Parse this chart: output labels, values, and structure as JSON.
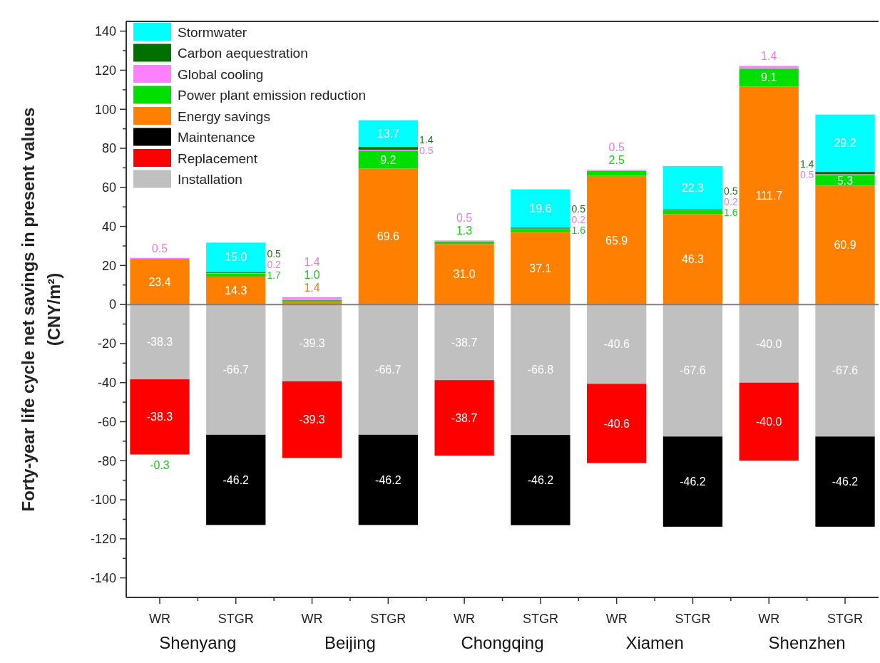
{
  "chart_data": {
    "type": "bar",
    "stacked": true,
    "ylabel": "Forty-year life cycle net savings in present values\n(CNY/m²)",
    "categories": [
      "WR",
      "STGR",
      "WR",
      "STGR",
      "WR",
      "STGR",
      "WR",
      "STGR",
      "WR",
      "STGR"
    ],
    "annotations": [
      "Shenyang",
      "Beijing",
      "Chongqing",
      "Xiamen",
      "Shenzhen"
    ],
    "series": [
      {
        "name": "Installation",
        "color": "#c0c0c0",
        "values": [
          -38.3,
          -66.7,
          -39.3,
          -66.7,
          -38.7,
          -66.8,
          -40.6,
          -67.6,
          -40.0,
          -67.6
        ],
        "value_labels": [
          "-38.3",
          "-66.7",
          "-39.3",
          "-66.7",
          "-38.7",
          "-66.8",
          "-40.6",
          "-67.6",
          "-40.0",
          "-67.6"
        ]
      },
      {
        "name": "Replacement",
        "color": "#ff0000",
        "values": [
          -38.3,
          null,
          -39.3,
          null,
          -38.7,
          null,
          -40.6,
          null,
          -40.0,
          null
        ],
        "value_labels": [
          "-38.3",
          null,
          "-39.3",
          null,
          "-38.7",
          null,
          "-40.6",
          null,
          "-40.0",
          null
        ]
      },
      {
        "name": "Maintenance",
        "color": "#000000",
        "values": [
          null,
          -46.2,
          null,
          -46.2,
          null,
          -46.2,
          null,
          -46.2,
          null,
          -46.2
        ],
        "value_labels": [
          null,
          "-46.2",
          null,
          "-46.2",
          null,
          "-46.2",
          null,
          "-46.2",
          null,
          "-46.2"
        ]
      },
      {
        "name": "Energy savings",
        "color": "#ff8000",
        "values": [
          23.4,
          14.3,
          1.4,
          69.6,
          31.0,
          37.1,
          65.9,
          46.3,
          111.7,
          60.9
        ],
        "value_labels": [
          "23.4",
          "14.3",
          "1.4",
          "69.6",
          "31.0",
          "37.1",
          "65.9",
          "46.3",
          "111.7",
          "60.9"
        ]
      },
      {
        "name": "Power plant emission reduction",
        "color": "#00e000",
        "values": [
          -0.3,
          1.7,
          1.0,
          9.2,
          1.3,
          1.6,
          2.5,
          1.6,
          9.1,
          5.3
        ],
        "value_labels": [
          "-0.3",
          "1.7",
          "1.0",
          "9.2",
          "1.3",
          "1.6",
          "2.5",
          "1.6",
          "9.1",
          "5.3"
        ]
      },
      {
        "name": "Global cooling",
        "color": "#ff80ff",
        "values": [
          0.5,
          0.2,
          1.4,
          0.5,
          0.5,
          0.2,
          0.5,
          0.2,
          1.4,
          0.5
        ],
        "value_labels": [
          "0.5",
          "0.2",
          "1.4",
          "0.5",
          "0.5",
          "0.2",
          "0.5",
          "0.2",
          "1.4",
          "0.5"
        ]
      },
      {
        "name": "Carbon aequestration",
        "color": "#007000",
        "values": [
          null,
          0.5,
          null,
          1.4,
          null,
          0.5,
          null,
          0.5,
          null,
          1.4
        ],
        "value_labels": [
          null,
          "0.5",
          null,
          "1.4",
          null,
          "0.5",
          null,
          "0.5",
          null,
          "1.4"
        ]
      },
      {
        "name": "Stormwater",
        "color": "#00ffff",
        "values": [
          null,
          15.0,
          null,
          13.7,
          null,
          19.6,
          null,
          22.3,
          null,
          29.2
        ],
        "value_labels": [
          null,
          "15.0",
          null,
          "13.7",
          null,
          "19.6",
          null,
          "22.3",
          null,
          "29.2"
        ]
      }
    ],
    "ylim": [
      -150,
      145
    ],
    "yticks": [
      -140,
      {
        "value": -130,
        "label": null
      },
      -120,
      {
        "value": -110,
        "label": null
      },
      -100,
      {
        "value": -90,
        "label": null
      },
      -80,
      {
        "value": -70,
        "label": null
      },
      -60,
      {
        "value": -50,
        "label": null
      },
      -40,
      {
        "value": -30,
        "label": null
      },
      -20,
      {
        "value": -10,
        "label": null
      },
      0,
      {
        "value": 10,
        "label": null
      },
      20,
      {
        "value": 30,
        "label": null
      },
      40,
      {
        "value": 50,
        "label": null
      },
      60,
      {
        "value": 70,
        "label": null
      },
      80,
      {
        "value": 90,
        "label": null
      },
      100,
      {
        "value": 110,
        "label": null
      },
      120,
      {
        "value": 130,
        "label": null
      },
      140
    ],
    "ref_lines": [
      {
        "axis": "y",
        "value": 0,
        "color": "#808080"
      }
    ],
    "legend": "top left",
    "grid": false
  }
}
